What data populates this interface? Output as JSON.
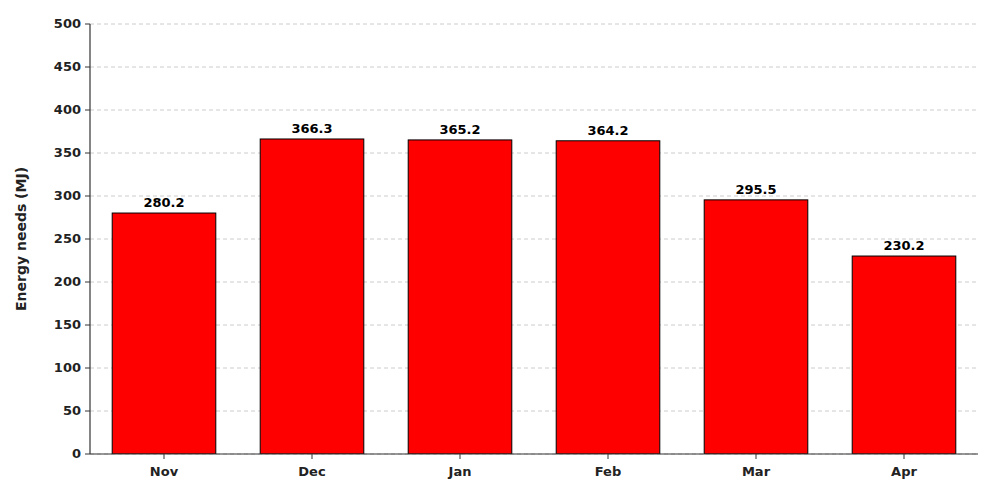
{
  "chart_data": {
    "type": "bar",
    "categories": [
      "Nov",
      "Dec",
      "Jan",
      "Feb",
      "Mar",
      "Apr"
    ],
    "values": [
      280.2,
      366.3,
      365.2,
      364.2,
      295.5,
      230.2
    ],
    "color": "#ff0000",
    "ylabel": "Energy needs (MJ)",
    "ylim": [
      0,
      500
    ],
    "yticks": [
      0,
      50,
      100,
      150,
      200,
      250,
      300,
      350,
      400,
      450,
      500
    ],
    "grid": true,
    "data_labels": true
  }
}
